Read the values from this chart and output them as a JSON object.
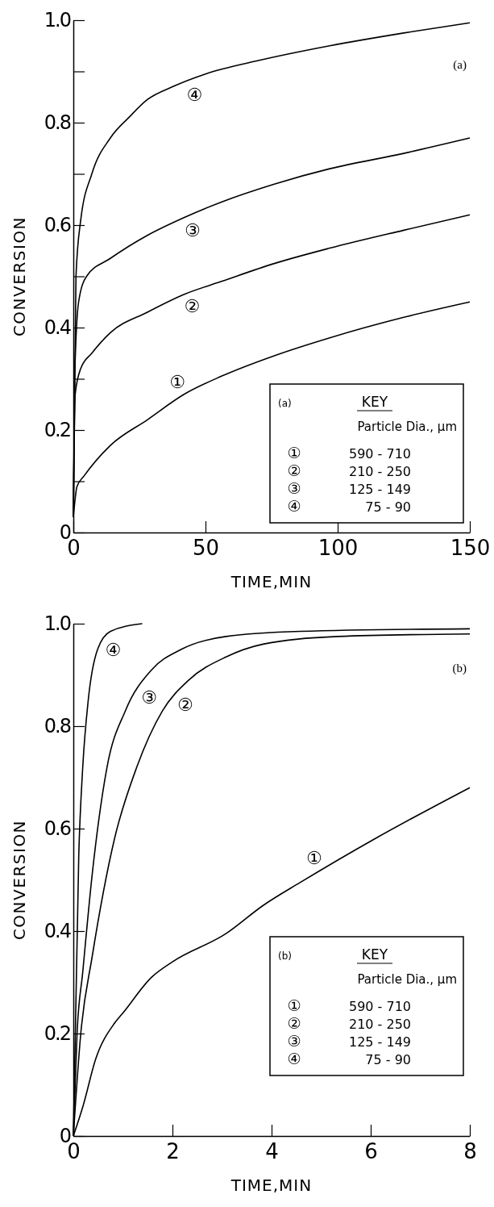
{
  "chart_data": [
    {
      "type": "line",
      "title": "(a)",
      "xlabel": "TIME,MIN",
      "ylabel": "CONVERSION",
      "grid": false,
      "marker": "none",
      "line_style": "solid",
      "xlim": [
        0,
        150
      ],
      "ylim": [
        0,
        1
      ],
      "xticks": [
        0,
        50,
        100,
        150
      ],
      "yticks": [
        0,
        {
          "value": 0.1,
          "label": null
        },
        0.2,
        {
          "value": 0.3,
          "label": null
        },
        0.4,
        {
          "value": 0.5,
          "label": null
        },
        0.6,
        {
          "value": 0.7,
          "label": null
        },
        0.8,
        {
          "value": 0.9,
          "label": null
        },
        {
          "value": 1,
          "label": "1.0"
        }
      ],
      "annotations": [
        "(a)",
        "KEY",
        "Particle Dia., μm",
        "①",
        "590 - 710",
        "②",
        "210 - 250",
        "③",
        "125 - 149",
        "④",
        "75 - 90",
        {
          "text": "①",
          "x": 42,
          "y": 0.27
        },
        {
          "text": "②",
          "x": 43,
          "y": 0.467
        },
        {
          "text": "③",
          "x": 43,
          "y": 0.615
        },
        {
          "text": "④",
          "x": 44,
          "y": 0.88
        }
      ],
      "series": [
        {
          "color": "#000000",
          "x": [
            0,
            1.4,
            4,
            14,
            28,
            42,
            56,
            76,
            97,
            125,
            150
          ],
          "values": [
            0.03,
            0.09,
            0.11,
            0.17,
            0.22,
            0.27,
            0.305,
            0.345,
            0.38,
            0.42,
            0.45
          ]
        },
        {
          "color": "#000000",
          "x": [
            0,
            0.7,
            2.8,
            7,
            14,
            28,
            42,
            56,
            76,
            97,
            125,
            150
          ],
          "values": [
            0.03,
            0.27,
            0.32,
            0.35,
            0.39,
            0.43,
            0.465,
            0.49,
            0.525,
            0.555,
            0.59,
            0.62
          ]
        },
        {
          "color": "#000000",
          "x": [
            0,
            0.5,
            2,
            5,
            14,
            28,
            42,
            56,
            76,
            97,
            125,
            150
          ],
          "values": [
            0.03,
            0.3,
            0.45,
            0.5,
            0.535,
            0.58,
            0.615,
            0.645,
            0.68,
            0.71,
            0.74,
            0.77
          ]
        },
        {
          "color": "#000000",
          "x": [
            0,
            1,
            2.8,
            7,
            14,
            21,
            28,
            37.5,
            50,
            69,
            97,
            125,
            150
          ],
          "values": [
            0.03,
            0.5,
            0.61,
            0.7,
            0.77,
            0.81,
            0.845,
            0.87,
            0.895,
            0.92,
            0.95,
            0.975,
            0.995
          ]
        }
      ]
    },
    {
      "type": "line",
      "title": "(b)",
      "xlabel": "TIME,MIN",
      "ylabel": "CONVERSION",
      "grid": false,
      "marker": "none",
      "line_style": "solid",
      "xlim": [
        0,
        8
      ],
      "ylim": [
        0,
        1
      ],
      "xticks": [
        0,
        2,
        4,
        6,
        8
      ],
      "yticks": [
        0,
        0.2,
        0.4,
        0.6,
        0.8,
        {
          "value": 1,
          "label": "1.0"
        }
      ],
      "annotations": [
        "(b)",
        "KEY",
        "Particle Dia., μm",
        "①",
        "590 - 710",
        "②",
        "210 - 250",
        "③",
        "125 - 149",
        "④",
        "75 - 90",
        {
          "text": "①",
          "x": 5,
          "y": 0.52
        },
        {
          "text": "②",
          "x": 2.05,
          "y": 0.86
        },
        {
          "text": "③",
          "x": 1.3,
          "y": 0.87
        },
        {
          "text": "④",
          "x": 0.55,
          "y": 0.96
        }
      ],
      "series": [
        {
          "color": "#000000",
          "x": [
            0,
            0.2,
            0.45,
            0.83,
            1,
            1.58,
            2,
            3.08,
            3.83,
            4.58,
            6.08,
            8
          ],
          "values": [
            0,
            0.06,
            0.15,
            0.22,
            0.24,
            0.31,
            0.34,
            0.395,
            0.45,
            0.495,
            0.58,
            0.68
          ]
        },
        {
          "color": "#000000",
          "x": [
            0,
            0.15,
            0.38,
            0.83,
            1.28,
            1.8,
            2.33,
            3.08,
            3.83,
            5.33,
            8
          ],
          "values": [
            0,
            0.2,
            0.35,
            0.58,
            0.72,
            0.83,
            0.89,
            0.935,
            0.96,
            0.975,
            0.98
          ]
        },
        {
          "color": "#000000",
          "x": [
            0,
            0.075,
            0.19,
            0.38,
            0.68,
            1.05,
            1.58,
            2.18,
            3.08,
            4.58,
            8
          ],
          "values": [
            0,
            0.2,
            0.32,
            0.51,
            0.72,
            0.83,
            0.91,
            0.95,
            0.975,
            0.985,
            0.99
          ]
        },
        {
          "color": "#000000",
          "x": [
            0,
            0.11,
            0.19,
            0.3,
            0.49,
            0.75,
            1.39
          ],
          "values": [
            0,
            0.55,
            0.72,
            0.85,
            0.95,
            0.985,
            1
          ]
        }
      ]
    }
  ]
}
